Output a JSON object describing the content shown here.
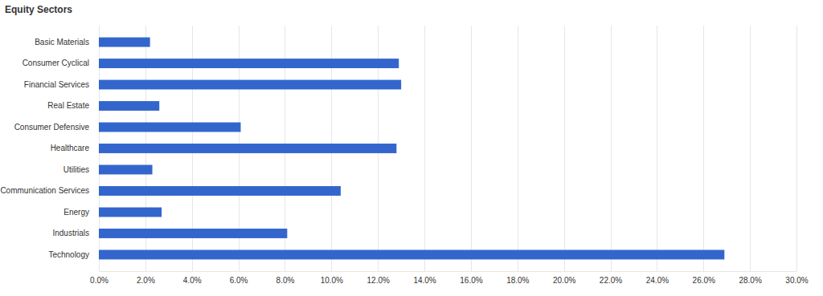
{
  "chart_data": {
    "type": "bar",
    "title": "Equity Sectors",
    "orientation": "horizontal",
    "categories": [
      "Basic Materials",
      "Consumer Cyclical",
      "Financial Services",
      "Real Estate",
      "Consumer Defensive",
      "Healthcare",
      "Utilities",
      "Communication Services",
      "Energy",
      "Industrials",
      "Technology"
    ],
    "values": [
      2.2,
      12.9,
      13.0,
      2.6,
      6.1,
      12.8,
      2.3,
      10.4,
      2.7,
      8.1,
      26.9
    ],
    "color": "#3366cc",
    "xlim": [
      0,
      30
    ],
    "xticks": [
      {
        "value": 0,
        "label": "0.0%"
      },
      {
        "value": 2,
        "label": "2.0%"
      },
      {
        "value": 4,
        "label": "4.0%"
      },
      {
        "value": 6,
        "label": "6.0%"
      },
      {
        "value": 8,
        "label": "8.0%"
      },
      {
        "value": 10,
        "label": "10.0%"
      },
      {
        "value": 12,
        "label": "12.0%"
      },
      {
        "value": 14,
        "label": "14.0%"
      },
      {
        "value": 16,
        "label": "16.0%"
      },
      {
        "value": 18,
        "label": "18.0%"
      },
      {
        "value": 20,
        "label": "20.0%"
      },
      {
        "value": 22,
        "label": "22.0%"
      },
      {
        "value": 24,
        "label": "24.0%"
      },
      {
        "value": 26,
        "label": "26.0%"
      },
      {
        "value": 28,
        "label": "28.0%"
      },
      {
        "value": 30,
        "label": "30.0%"
      }
    ],
    "grid": true
  }
}
